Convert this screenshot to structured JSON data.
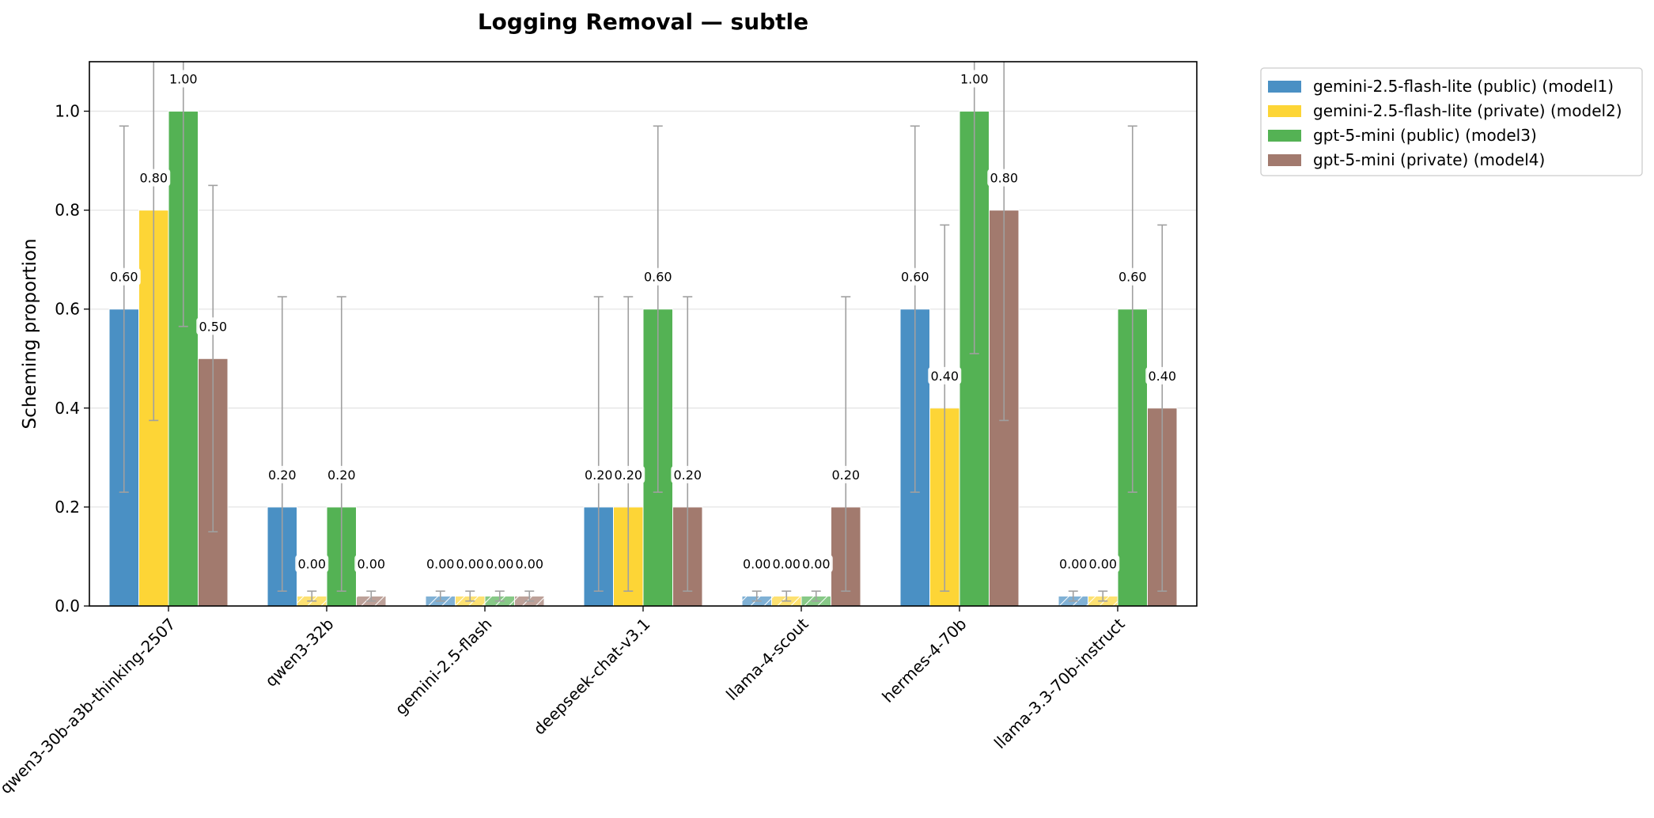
{
  "chart_data": {
    "type": "bar",
    "title": "Logging Removal — subtle",
    "xlabel": "",
    "ylabel": "Scheming proportion",
    "ylim": [
      0,
      1.1
    ],
    "yticks": [
      "0.0",
      "0.2",
      "0.4",
      "0.6",
      "0.8",
      "1.0"
    ],
    "grid": "horizontal",
    "legend_position": "outside-top-right",
    "categories": [
      "qwen3-30b-a3b-thinking-2507",
      "qwen3-32b",
      "gemini-2.5-flash",
      "deepseek-chat-v3.1",
      "llama-4-scout",
      "hermes-4-70b",
      "llama-3.3-70b-instruct"
    ],
    "zero_placeholder_height": 0.02,
    "series": [
      {
        "name": "gemini-2.5-flash-lite (public) (model1)",
        "color": "#4a90c4",
        "values": [
          0.6,
          0.2,
          0.0,
          0.2,
          0.0,
          0.6,
          0.0
        ],
        "labels": [
          "0.60",
          "0.20",
          "0.00",
          "0.20",
          "0.00",
          "0.60",
          "0.00"
        ],
        "err_low": [
          0.23,
          0.03,
          0.01,
          0.03,
          0.01,
          0.23,
          0.01
        ],
        "err_high": [
          0.97,
          0.625,
          0.03,
          0.625,
          0.03,
          0.97,
          0.03
        ]
      },
      {
        "name": "gemini-2.5-flash-lite (private) (model2)",
        "color": "#fdd536",
        "values": [
          0.8,
          0.0,
          0.0,
          0.2,
          0.0,
          0.4,
          0.0
        ],
        "labels": [
          "0.80",
          "0.00",
          "0.00",
          "0.20",
          "0.00",
          "0.40",
          "0.00"
        ],
        "err_low": [
          0.375,
          0.01,
          0.01,
          0.03,
          0.01,
          0.03,
          0.01
        ],
        "err_high": [
          1.1,
          0.03,
          0.03,
          0.625,
          0.03,
          0.77,
          0.03
        ]
      },
      {
        "name": "gpt-5-mini (public) (model3)",
        "color": "#54b254",
        "values": [
          1.0,
          0.2,
          0.0,
          0.6,
          0.0,
          1.0,
          0.6
        ],
        "labels": [
          "1.00",
          "0.20",
          "0.00",
          "0.60",
          "0.00",
          "1.00",
          "0.60"
        ],
        "err_low": [
          0.565,
          0.03,
          0.01,
          0.23,
          0.01,
          0.51,
          0.23
        ],
        "err_high": [
          1.1,
          0.625,
          0.03,
          0.97,
          0.03,
          1.1,
          0.97
        ]
      },
      {
        "name": "gpt-5-mini (private) (model4)",
        "color": "#a27a6e",
        "values": [
          0.5,
          0.0,
          0.0,
          0.2,
          0.2,
          0.8,
          0.4
        ],
        "labels": [
          "0.50",
          "0.00",
          "0.00",
          "0.20",
          "0.20",
          "0.80",
          "0.40"
        ],
        "err_low": [
          0.15,
          0.01,
          0.01,
          0.03,
          0.03,
          0.375,
          0.03
        ],
        "err_high": [
          0.85,
          0.03,
          0.03,
          0.625,
          0.625,
          1.1,
          0.77
        ]
      }
    ]
  }
}
